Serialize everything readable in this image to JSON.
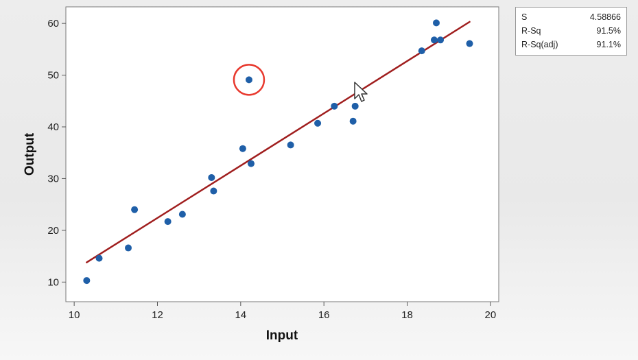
{
  "chart_data": {
    "type": "scatter",
    "xlabel": "Input",
    "ylabel": "Output",
    "xlim": [
      9.8,
      20.2
    ],
    "ylim": [
      6.2,
      63.2
    ],
    "xticks": [
      10,
      12,
      14,
      16,
      18,
      20
    ],
    "yticks": [
      10,
      20,
      30,
      40,
      50,
      60
    ],
    "points": [
      {
        "x": 10.3,
        "y": 10.3
      },
      {
        "x": 10.6,
        "y": 14.6
      },
      {
        "x": 11.3,
        "y": 16.6
      },
      {
        "x": 11.45,
        "y": 24.0
      },
      {
        "x": 12.25,
        "y": 21.7
      },
      {
        "x": 12.6,
        "y": 23.1
      },
      {
        "x": 13.3,
        "y": 30.2
      },
      {
        "x": 13.35,
        "y": 27.6
      },
      {
        "x": 14.05,
        "y": 35.8
      },
      {
        "x": 14.2,
        "y": 49.1
      },
      {
        "x": 14.25,
        "y": 32.9
      },
      {
        "x": 15.2,
        "y": 36.5
      },
      {
        "x": 15.85,
        "y": 40.7
      },
      {
        "x": 16.25,
        "y": 44.0
      },
      {
        "x": 16.7,
        "y": 41.1
      },
      {
        "x": 16.75,
        "y": 44.0
      },
      {
        "x": 18.35,
        "y": 54.7
      },
      {
        "x": 18.65,
        "y": 56.8
      },
      {
        "x": 18.7,
        "y": 60.1
      },
      {
        "x": 18.8,
        "y": 56.8
      },
      {
        "x": 19.5,
        "y": 56.1
      }
    ],
    "fit_line": {
      "x": [
        10.3,
        19.5
      ],
      "y": [
        13.8,
        60.3
      ]
    },
    "highlighted_point": {
      "x": 14.2,
      "y": 49.1
    },
    "point_color": "#1f5fa8",
    "line_color": "#a01e1e",
    "highlight_color": "#e8392e",
    "grid": false
  },
  "stats": [
    {
      "label": "S",
      "value": "4.58866"
    },
    {
      "label": "R-Sq",
      "value": "91.5%"
    },
    {
      "label": "R-Sq(adj)",
      "value": "91.1%"
    }
  ]
}
